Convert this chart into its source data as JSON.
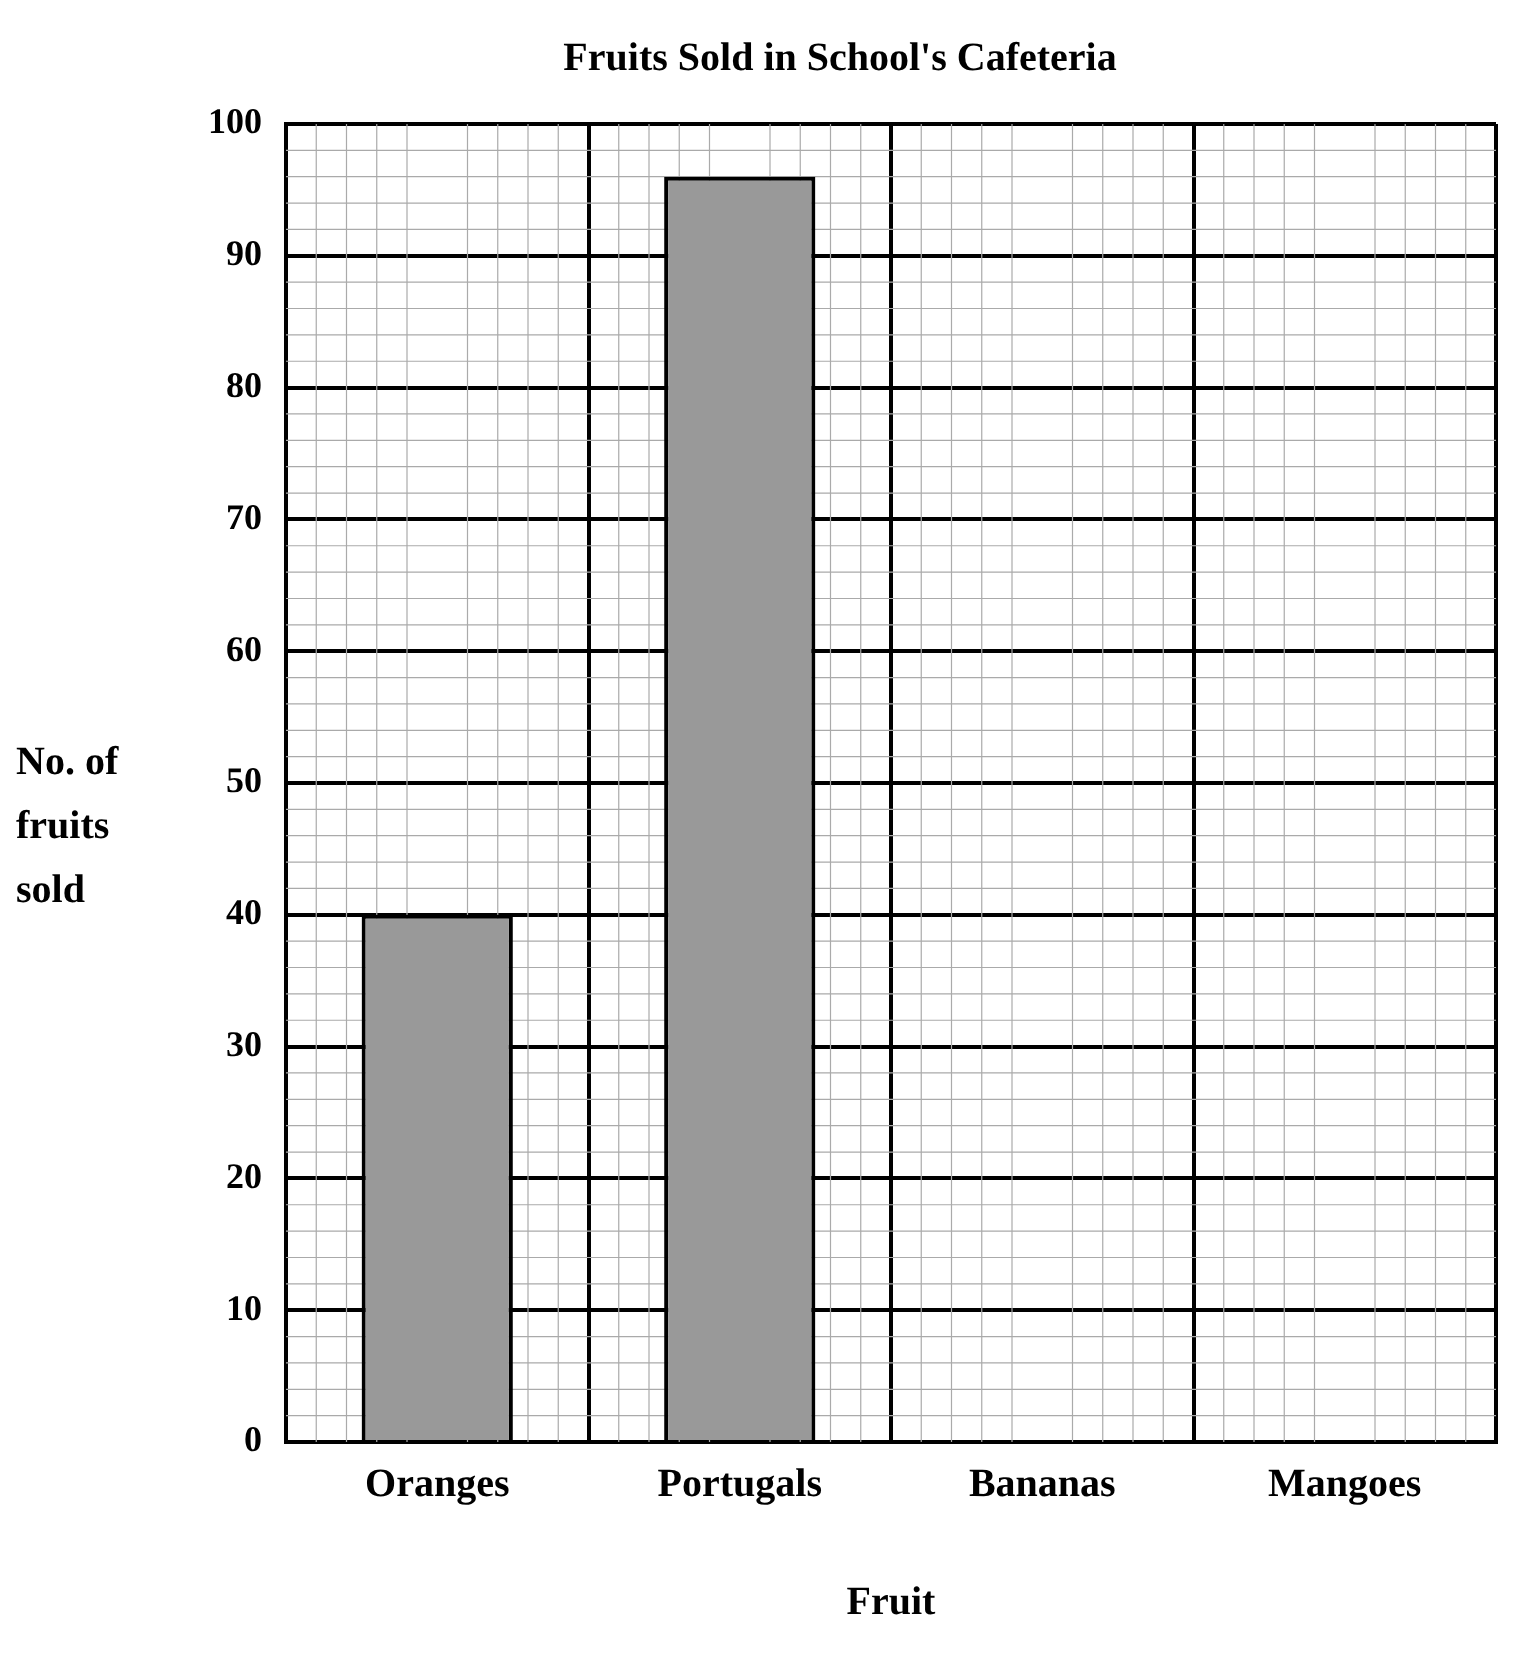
{
  "chart_data": {
    "type": "bar",
    "title": "Fruits Sold in School's Cafeteria",
    "xlabel": "Fruit",
    "ylabel": "No. of fruits sold",
    "categories": [
      "Oranges",
      "Portugals",
      "Bananas",
      "Mangoes"
    ],
    "values": [
      40,
      96,
      null,
      null
    ],
    "color": "#999999",
    "ylim": [
      0,
      100
    ],
    "yticks": [
      0,
      10,
      20,
      30,
      40,
      50,
      60,
      70,
      80,
      90,
      100
    ],
    "grid": true
  }
}
